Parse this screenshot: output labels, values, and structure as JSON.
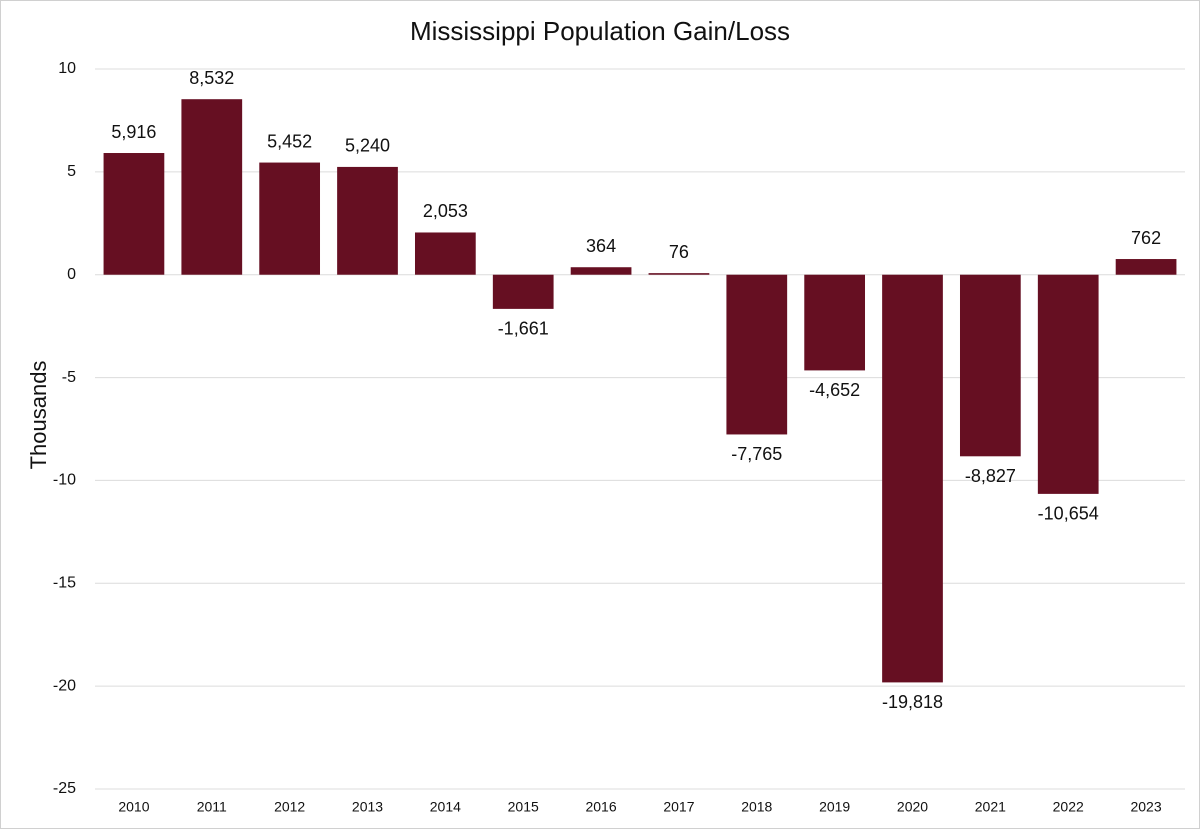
{
  "chart_data": {
    "type": "bar",
    "title": "Mississippi Population Gain/Loss",
    "y_label": "Thousands",
    "categories": [
      "2010",
      "2011",
      "2012",
      "2013",
      "2014",
      "2015",
      "2016",
      "2017",
      "2018",
      "2019",
      "2020",
      "2021",
      "2022",
      "2023"
    ],
    "values": [
      5.916,
      8.532,
      5.452,
      5.24,
      2.053,
      -1.661,
      0.364,
      0.076,
      -7.765,
      -4.652,
      -19.818,
      -8.827,
      -10.654,
      0.762
    ],
    "value_labels": [
      "5,916",
      "8,532",
      "5,452",
      "5,240",
      "2,053",
      "-1,661",
      "364",
      "76",
      "-7,765",
      "-4,652",
      "-19,818",
      "-8,827",
      "-10,654",
      "762"
    ],
    "color": "#660f22",
    "ylim": [
      -25,
      10
    ],
    "yticks": [
      10,
      5,
      0,
      -5,
      -10,
      -15,
      -20,
      -25
    ],
    "grid": true
  }
}
